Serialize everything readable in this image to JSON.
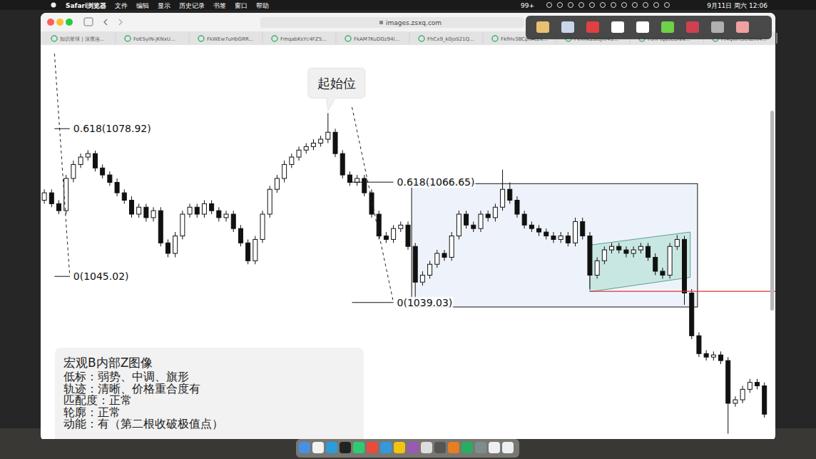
{
  "menu_bar": {
    "app": "Safari浏览器",
    "items": [
      "文件",
      "编辑",
      "显示",
      "历史记录",
      "书签",
      "窗口",
      "帮助"
    ],
    "badge": "99+",
    "clock": "9月11日 周六 12:06"
  },
  "browser": {
    "url": "images.zsxq.com",
    "tabs": [
      "知识星球 | 深度连...",
      "FoESyIN-jKNxU...",
      "FkWEw7uHbGRR...",
      "FmqabKsYc4FZ5...",
      "FkAM7KuDGz94l...",
      "FhCx9_k0joS21Q...",
      "FkfHv3BCpnAt2x...",
      "FvXRkZ8OJRf49...",
      "FohPtqd3LONN...",
      "Ft4qWHSUsbIN4..."
    ]
  },
  "chart_data": {
    "type": "candlestick",
    "tick_labels": false,
    "xlim": [
      -0.5,
      100.5
    ],
    "ylim": [
      1007.7,
      1097.8
    ],
    "open": [
      1062.5,
      1064.2,
      1061.7,
      1060.1,
      1067.5,
      1070.7,
      1072.4,
      1073.2,
      1069.9,
      1068.3,
      1066.6,
      1064.2,
      1062.5,
      1059.3,
      1060.9,
      1058.5,
      1060.1,
      1052.7,
      1050.3,
      1054.3,
      1059.3,
      1060.9,
      1059.3,
      1061.7,
      1060.1,
      1058.5,
      1059.3,
      1056.0,
      1052.7,
      1048.6,
      1053.5,
      1059.3,
      1065.0,
      1067.5,
      1070.7,
      1072.4,
      1074.0,
      1074.8,
      1075.6,
      1076.5,
      1078.1,
      1073.2,
      1068.3,
      1066.6,
      1067.5,
      1064.2,
      1059.3,
      1054.3,
      1053.5,
      1056.0,
      1056.8,
      1051.9,
      1043.7,
      1045.3,
      1047.8,
      1050.3,
      1049.4,
      1054.3,
      1059.3,
      1056.8,
      1056.0,
      1059.3,
      1058.5,
      1060.9,
      1065.0,
      1062.5,
      1059.3,
      1056.8,
      1056.0,
      1055.2,
      1054.3,
      1053.5,
      1054.3,
      1052.7,
      1057.6,
      1054.3,
      1045.3,
      1048.6,
      1051.1,
      1051.9,
      1051.1,
      1050.3,
      1051.1,
      1051.9,
      1049.4,
      1046.2,
      1045.3,
      1051.9,
      1053.5,
      1041.2,
      1031.4,
      1027.3,
      1026.5,
      1027.0,
      1025.7,
      1015.9,
      1016.7,
      1019.1,
      1020.7,
      1019.9
    ],
    "high": [
      1065.0,
      1065.0,
      1062.5,
      1068.3,
      1071.6,
      1073.2,
      1074.0,
      1073.9,
      1070.7,
      1069.1,
      1067.5,
      1065.0,
      1063.4,
      1061.7,
      1061.7,
      1060.9,
      1060.9,
      1053.5,
      1055.2,
      1060.1,
      1061.7,
      1061.7,
      1062.5,
      1062.5,
      1060.9,
      1060.1,
      1060.1,
      1056.8,
      1053.5,
      1054.3,
      1060.1,
      1065.8,
      1068.3,
      1071.6,
      1073.2,
      1074.8,
      1075.6,
      1076.5,
      1077.3,
      1082.5,
      1078.9,
      1074.0,
      1069.1,
      1068.3,
      1068.3,
      1065.0,
      1060.1,
      1055.2,
      1056.8,
      1057.6,
      1057.6,
      1052.7,
      1046.2,
      1048.6,
      1051.1,
      1051.1,
      1055.2,
      1060.1,
      1060.1,
      1057.6,
      1060.1,
      1060.1,
      1061.7,
      1069.5,
      1066.6,
      1063.4,
      1060.1,
      1057.6,
      1056.8,
      1056.0,
      1055.2,
      1055.2,
      1055.2,
      1058.5,
      1058.5,
      1055.2,
      1049.4,
      1051.9,
      1052.7,
      1052.7,
      1051.9,
      1051.9,
      1052.7,
      1052.7,
      1050.3,
      1047.0,
      1052.7,
      1054.5,
      1054.3,
      1042.1,
      1032.2,
      1028.1,
      1027.8,
      1027.8,
      1026.5,
      1017.5,
      1019.9,
      1021.5,
      1021.5,
      1020.7
    ],
    "low": [
      1061.7,
      1060.9,
      1059.3,
      1059.3,
      1066.6,
      1069.9,
      1071.6,
      1069.1,
      1067.5,
      1065.8,
      1063.4,
      1061.7,
      1058.5,
      1058.5,
      1057.6,
      1057.6,
      1051.9,
      1049.4,
      1049.4,
      1053.5,
      1058.5,
      1058.5,
      1058.5,
      1059.3,
      1057.6,
      1057.6,
      1055.2,
      1051.9,
      1047.8,
      1047.8,
      1052.7,
      1058.5,
      1064.2,
      1066.6,
      1069.9,
      1071.6,
      1073.2,
      1074.0,
      1074.8,
      1075.6,
      1072.4,
      1067.5,
      1065.8,
      1065.8,
      1063.4,
      1058.5,
      1053.5,
      1052.7,
      1052.7,
      1055.2,
      1051.1,
      1039.0,
      1042.9,
      1044.5,
      1047.0,
      1048.6,
      1048.6,
      1053.5,
      1056.0,
      1055.2,
      1055.2,
      1057.6,
      1057.6,
      1060.1,
      1061.7,
      1058.5,
      1056.0,
      1055.2,
      1054.3,
      1053.5,
      1052.7,
      1052.7,
      1051.9,
      1051.9,
      1053.5,
      1042.1,
      1044.5,
      1047.8,
      1050.3,
      1050.3,
      1049.4,
      1049.4,
      1050.3,
      1048.6,
      1045.3,
      1044.5,
      1044.5,
      1051.1,
      1038.5,
      1030.6,
      1026.5,
      1025.7,
      1025.7,
      1024.9,
      1008.9,
      1015.1,
      1015.9,
      1018.3,
      1019.1,
      1012.6
    ],
    "close": [
      1064.2,
      1061.7,
      1060.1,
      1067.5,
      1070.7,
      1072.4,
      1073.2,
      1069.9,
      1068.3,
      1066.6,
      1064.2,
      1062.5,
      1059.3,
      1060.9,
      1058.5,
      1060.1,
      1052.7,
      1050.3,
      1054.3,
      1059.3,
      1060.9,
      1059.3,
      1061.7,
      1060.1,
      1058.5,
      1059.3,
      1056.0,
      1052.7,
      1048.6,
      1053.5,
      1059.3,
      1065.0,
      1067.5,
      1070.7,
      1072.4,
      1074.0,
      1074.8,
      1075.6,
      1076.5,
      1078.1,
      1073.2,
      1068.3,
      1066.6,
      1067.5,
      1064.2,
      1059.3,
      1054.3,
      1053.5,
      1056.0,
      1056.8,
      1051.9,
      1043.7,
      1045.3,
      1047.8,
      1050.3,
      1049.4,
      1054.3,
      1059.3,
      1056.8,
      1056.0,
      1059.3,
      1058.5,
      1060.9,
      1065.0,
      1062.5,
      1059.3,
      1056.8,
      1056.0,
      1055.2,
      1054.3,
      1053.5,
      1054.3,
      1052.7,
      1057.6,
      1054.3,
      1045.3,
      1048.6,
      1051.1,
      1051.9,
      1051.1,
      1050.3,
      1051.1,
      1051.9,
      1049.4,
      1046.2,
      1045.3,
      1051.9,
      1053.5,
      1041.2,
      1031.4,
      1027.3,
      1026.5,
      1027.0,
      1025.7,
      1015.9,
      1016.7,
      1019.1,
      1020.7,
      1019.9,
      1013.4
    ],
    "fib_levels": [
      {
        "label": "0.618(1078.92)",
        "value": 1078.92,
        "start": 1.4,
        "end": 3.5
      },
      {
        "label": "0(1045.02)",
        "value": 1045.02,
        "start": 1.4,
        "end": 3.5
      },
      {
        "label": "0.618(1066.65)",
        "value": 1066.65,
        "start": 42.3,
        "end": 48
      },
      {
        "label": "0(1039.03)",
        "value": 1039.03,
        "start": 42.3,
        "end": 48
      }
    ],
    "box": {
      "start": 50.5,
      "end": 89.8,
      "top": 1066.3,
      "bottom": 1038.0
    },
    "channel": {
      "start": 75,
      "end": 88.8,
      "top": [
        1052.2,
        1055.2
      ],
      "bottom": [
        1041.5,
        1044.8
      ]
    },
    "breakout_line": {
      "start": 75,
      "value": 1041.6
    },
    "callout": {
      "text": "起始位",
      "at": 39
    }
  },
  "note": {
    "title": "宏观B内部Z图像",
    "lines": [
      "低标：弱势、中调、旗形",
      "轨迹：清晰、价格重合度有",
      "匹配度：正常",
      "轮廓：正常",
      "动能：有（第二根收破极值点）"
    ]
  }
}
